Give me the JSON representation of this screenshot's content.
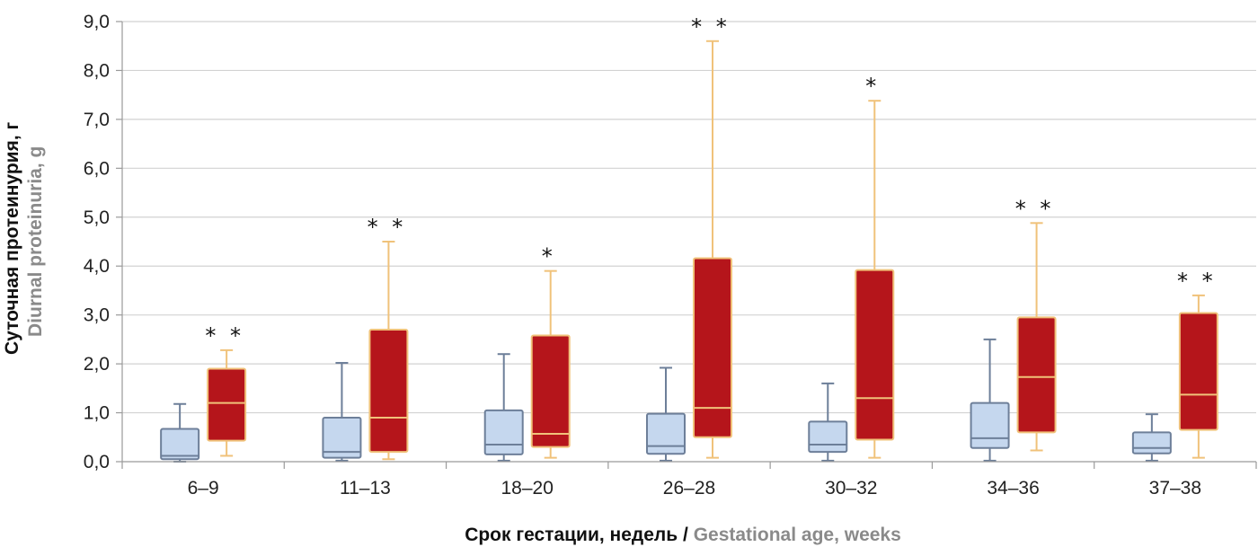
{
  "chart_data": {
    "type": "boxplot",
    "ylabel": {
      "primary": "Суточная протеинурия, г",
      "secondary": "Diurnal proteinuria, g"
    },
    "xlabel": {
      "primary": "Срок гестации, недель",
      "separator": " / ",
      "secondary": "Gestational age, weeks"
    },
    "ylim": [
      0,
      9
    ],
    "yticks": [
      "0,0",
      "1,0",
      "2,0",
      "3,0",
      "4,0",
      "5,0",
      "6,0",
      "7,0",
      "8,0",
      "9,0"
    ],
    "grid": true,
    "categories": [
      "6–9",
      "11–13",
      "18–20",
      "26–28",
      "30–32",
      "34–36",
      "37–38"
    ],
    "significance": [
      "* *",
      "* *",
      "*",
      "* *",
      "*",
      "* *",
      "* *"
    ],
    "series": [
      {
        "fill": "#c5d7ee",
        "stroke": "#6d7f99",
        "median_color": "#6d7f99",
        "boxes": [
          {
            "min": 0.0,
            "q1": 0.05,
            "median": 0.12,
            "q3": 0.67,
            "max": 1.18
          },
          {
            "min": 0.02,
            "q1": 0.08,
            "median": 0.2,
            "q3": 0.9,
            "max": 2.02
          },
          {
            "min": 0.02,
            "q1": 0.15,
            "median": 0.35,
            "q3": 1.05,
            "max": 2.2
          },
          {
            "min": 0.02,
            "q1": 0.16,
            "median": 0.32,
            "q3": 0.98,
            "max": 1.92
          },
          {
            "min": 0.02,
            "q1": 0.2,
            "median": 0.35,
            "q3": 0.82,
            "max": 1.6
          },
          {
            "min": 0.02,
            "q1": 0.28,
            "median": 0.48,
            "q3": 1.2,
            "max": 2.5
          },
          {
            "min": 0.02,
            "q1": 0.17,
            "median": 0.28,
            "q3": 0.6,
            "max": 0.97
          }
        ]
      },
      {
        "fill": "#b5151b",
        "stroke": "#f0c27a",
        "median_color": "#f0c27a",
        "boxes": [
          {
            "min": 0.12,
            "q1": 0.43,
            "median": 1.2,
            "q3": 1.9,
            "max": 2.28
          },
          {
            "min": 0.05,
            "q1": 0.2,
            "median": 0.9,
            "q3": 2.7,
            "max": 4.5
          },
          {
            "min": 0.08,
            "q1": 0.3,
            "median": 0.57,
            "q3": 2.58,
            "max": 3.9
          },
          {
            "min": 0.08,
            "q1": 0.5,
            "median": 1.1,
            "q3": 4.16,
            "max": 8.6
          },
          {
            "min": 0.08,
            "q1": 0.45,
            "median": 1.3,
            "q3": 3.92,
            "max": 7.38
          },
          {
            "min": 0.23,
            "q1": 0.6,
            "median": 1.73,
            "q3": 2.95,
            "max": 4.88
          },
          {
            "min": 0.08,
            "q1": 0.65,
            "median": 1.37,
            "q3": 3.04,
            "max": 3.4
          }
        ]
      }
    ]
  }
}
